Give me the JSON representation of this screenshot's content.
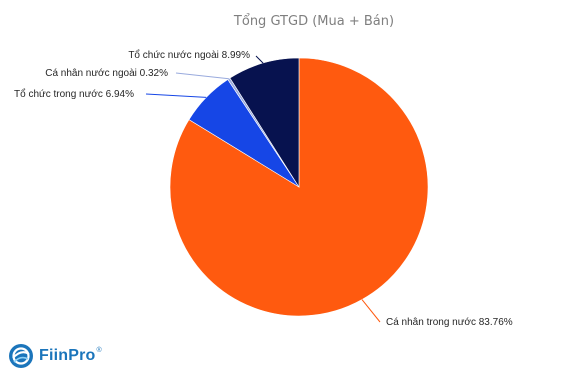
{
  "chart_data": {
    "type": "pie",
    "title": "Tổng GTGD (Mua + Bán)",
    "categories": [
      "Cá nhân trong nước",
      "Tổ chức trong nước",
      "Cá nhân nước ngoài",
      "Tổ chức nước ngoài"
    ],
    "values": [
      83.76,
      6.94,
      0.32,
      8.99
    ],
    "labels": [
      "Cá nhân trong nước 83.76%",
      "Tổ chức trong nước 6.94%",
      "Cá nhân nước ngoài 0.32%",
      "Tổ chức nước ngoài 8.99%"
    ],
    "colors": [
      "#ff5a0f",
      "#1646e6",
      "#99aadd",
      "#07124f"
    ],
    "start": "12 o'clock",
    "direction": "clockwise",
    "legend": "none"
  },
  "branding": {
    "logo_text": "FiinPro",
    "logo_mark": "®",
    "logo_icon": "fiinpro-logo-icon",
    "logo_color": "#1b75bb"
  }
}
